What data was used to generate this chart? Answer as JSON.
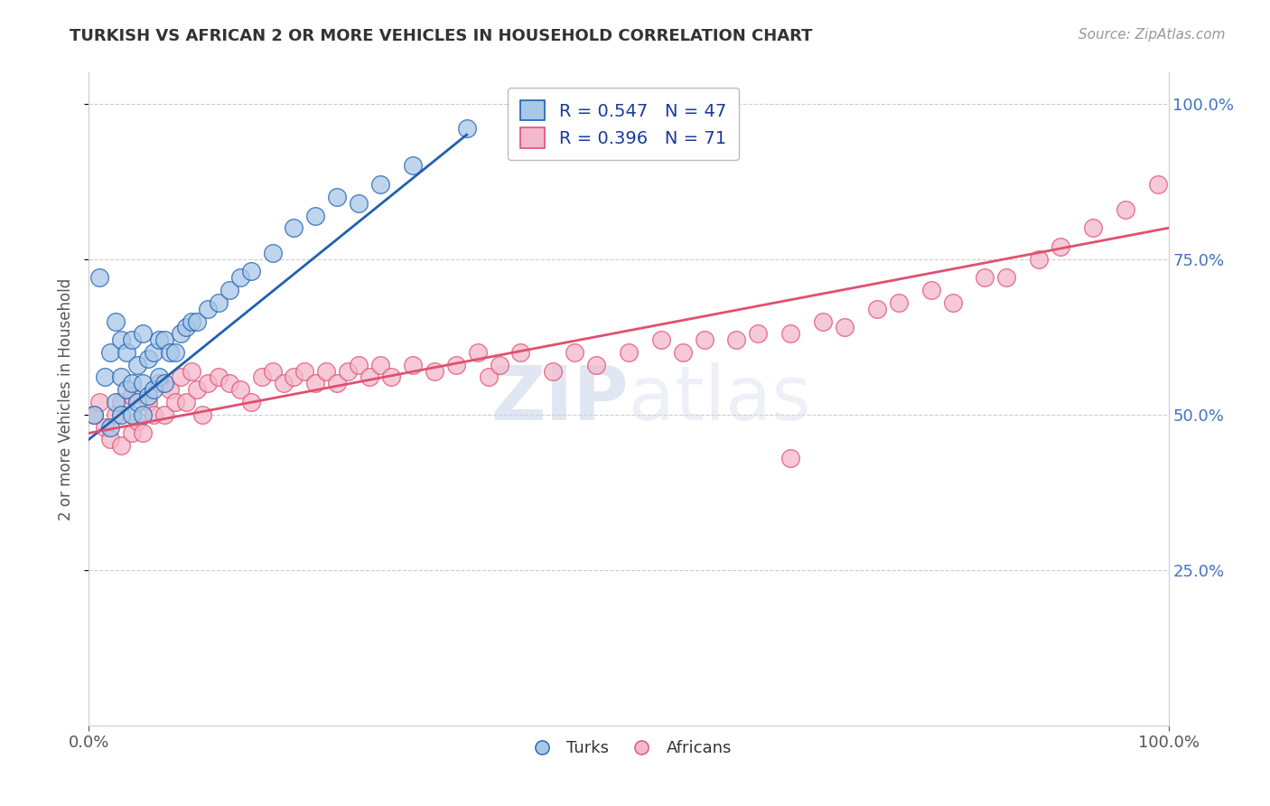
{
  "title": "TURKISH VS AFRICAN 2 OR MORE VEHICLES IN HOUSEHOLD CORRELATION CHART",
  "source": "Source: ZipAtlas.com",
  "ylabel": "2 or more Vehicles in Household",
  "legend_turks_R": "0.547",
  "legend_turks_N": "47",
  "legend_africans_R": "0.396",
  "legend_africans_N": "71",
  "legend_label_turks": "Turks",
  "legend_label_africans": "Africans",
  "turks_color": "#a8c8e8",
  "africans_color": "#f4b8cc",
  "turks_line_color": "#2060b0",
  "africans_line_color": "#e05070",
  "background_color": "#ffffff",
  "grid_color": "#cccccc",
  "right_yaxis_color": "#4472c4",
  "turks_x": [
    0.005,
    0.01,
    0.015,
    0.02,
    0.02,
    0.025,
    0.025,
    0.03,
    0.03,
    0.03,
    0.035,
    0.035,
    0.04,
    0.04,
    0.04,
    0.045,
    0.045,
    0.05,
    0.05,
    0.05,
    0.055,
    0.055,
    0.06,
    0.06,
    0.065,
    0.065,
    0.07,
    0.07,
    0.075,
    0.08,
    0.085,
    0.09,
    0.095,
    0.1,
    0.11,
    0.12,
    0.13,
    0.14,
    0.15,
    0.17,
    0.19,
    0.21,
    0.23,
    0.25,
    0.27,
    0.3,
    0.35
  ],
  "turks_y": [
    0.5,
    0.72,
    0.56,
    0.48,
    0.6,
    0.52,
    0.65,
    0.5,
    0.56,
    0.62,
    0.54,
    0.6,
    0.5,
    0.55,
    0.62,
    0.52,
    0.58,
    0.5,
    0.55,
    0.63,
    0.53,
    0.59,
    0.54,
    0.6,
    0.56,
    0.62,
    0.55,
    0.62,
    0.6,
    0.6,
    0.63,
    0.64,
    0.65,
    0.65,
    0.67,
    0.68,
    0.7,
    0.72,
    0.73,
    0.76,
    0.8,
    0.82,
    0.85,
    0.84,
    0.87,
    0.9,
    0.96
  ],
  "africans_x": [
    0.005,
    0.01,
    0.015,
    0.02,
    0.025,
    0.03,
    0.03,
    0.04,
    0.04,
    0.045,
    0.05,
    0.055,
    0.06,
    0.065,
    0.07,
    0.075,
    0.08,
    0.085,
    0.09,
    0.095,
    0.1,
    0.105,
    0.11,
    0.12,
    0.13,
    0.14,
    0.15,
    0.16,
    0.17,
    0.18,
    0.19,
    0.2,
    0.21,
    0.22,
    0.23,
    0.24,
    0.25,
    0.26,
    0.27,
    0.28,
    0.3,
    0.32,
    0.34,
    0.36,
    0.37,
    0.38,
    0.4,
    0.43,
    0.45,
    0.47,
    0.5,
    0.53,
    0.55,
    0.57,
    0.6,
    0.62,
    0.65,
    0.68,
    0.7,
    0.65,
    0.73,
    0.75,
    0.78,
    0.8,
    0.83,
    0.85,
    0.88,
    0.9,
    0.93,
    0.96,
    0.99
  ],
  "africans_y": [
    0.5,
    0.52,
    0.48,
    0.46,
    0.5,
    0.45,
    0.52,
    0.47,
    0.53,
    0.49,
    0.47,
    0.52,
    0.5,
    0.55,
    0.5,
    0.54,
    0.52,
    0.56,
    0.52,
    0.57,
    0.54,
    0.5,
    0.55,
    0.56,
    0.55,
    0.54,
    0.52,
    0.56,
    0.57,
    0.55,
    0.56,
    0.57,
    0.55,
    0.57,
    0.55,
    0.57,
    0.58,
    0.56,
    0.58,
    0.56,
    0.58,
    0.57,
    0.58,
    0.6,
    0.56,
    0.58,
    0.6,
    0.57,
    0.6,
    0.58,
    0.6,
    0.62,
    0.6,
    0.62,
    0.62,
    0.63,
    0.63,
    0.65,
    0.64,
    0.43,
    0.67,
    0.68,
    0.7,
    0.68,
    0.72,
    0.72,
    0.75,
    0.77,
    0.8,
    0.83,
    0.87
  ],
  "turks_line_x": [
    0.0,
    0.35
  ],
  "turks_line_y": [
    0.46,
    0.95
  ],
  "africans_line_x": [
    0.0,
    1.0
  ],
  "africans_line_y": [
    0.47,
    0.8
  ],
  "xlim": [
    0.0,
    1.0
  ],
  "ylim": [
    0.0,
    1.05
  ],
  "xticks": [
    0.0,
    1.0
  ],
  "yticks": [
    0.25,
    0.5,
    0.75,
    1.0
  ],
  "xtick_labels": [
    "0.0%",
    "100.0%"
  ],
  "ytick_labels_right": [
    "25.0%",
    "50.0%",
    "75.0%",
    "100.0%"
  ]
}
